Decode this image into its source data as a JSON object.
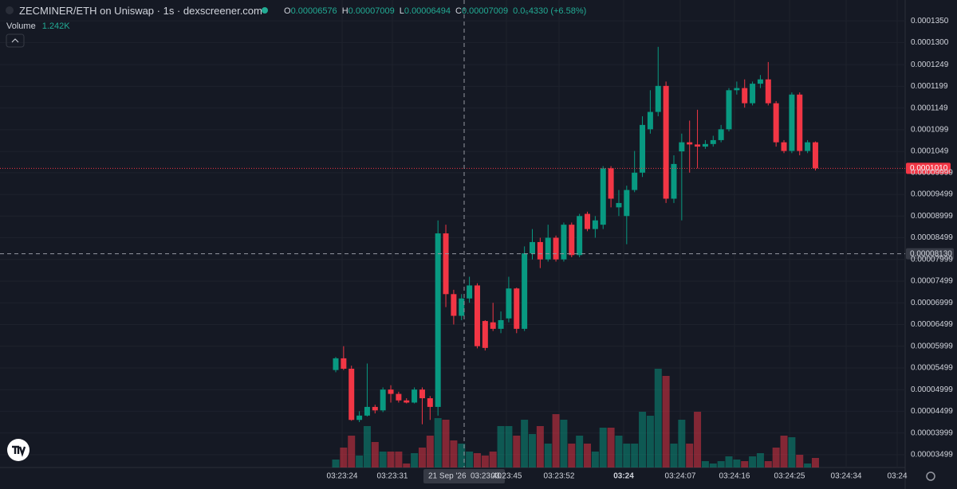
{
  "header": {
    "title": "ZECMINER/ETH on Uniswap · 1s · dexscreener.com",
    "ohlc": [
      {
        "key": "O",
        "value": "0.00006576"
      },
      {
        "key": "H",
        "value": "0.00007009"
      },
      {
        "key": "L",
        "value": "0.00006494"
      },
      {
        "key": "C",
        "value": "0.00007009"
      }
    ],
    "change": "0.0₅4330 (+6.58%)",
    "volume_label": "Volume",
    "volume_value": "1.242K"
  },
  "chart_data": {
    "type": "candlestick",
    "up_color": "#089981",
    "down_color": "#f23645",
    "grid": true,
    "ylim": [
      3.24e-05,
      0.0001398
    ],
    "yticks": [
      {
        "value": 0.000135,
        "label": "0.0001350"
      },
      {
        "value": 0.00013,
        "label": "0.0001300"
      },
      {
        "value": 0.0001249,
        "label": "0.0001249"
      },
      {
        "value": 0.0001199,
        "label": "0.0001199"
      },
      {
        "value": 0.0001149,
        "label": "0.0001149"
      },
      {
        "value": 0.0001099,
        "label": "0.0001099"
      },
      {
        "value": 0.0001049,
        "label": "0.0001049"
      },
      {
        "value": 9.999e-05,
        "label": "0.00009999"
      },
      {
        "value": 9.499e-05,
        "label": "0.00009499"
      },
      {
        "value": 8.999e-05,
        "label": "0.00008999"
      },
      {
        "value": 8.499e-05,
        "label": "0.00008499"
      },
      {
        "value": 7.999e-05,
        "label": "0.00007999"
      },
      {
        "value": 7.499e-05,
        "label": "0.00007499"
      },
      {
        "value": 6.999e-05,
        "label": "0.00006999"
      },
      {
        "value": 6.499e-05,
        "label": "0.00006499"
      },
      {
        "value": 5.999e-05,
        "label": "0.00005999"
      },
      {
        "value": 5.499e-05,
        "label": "0.00005499"
      },
      {
        "value": 4.999e-05,
        "label": "0.00004999"
      },
      {
        "value": 4.499e-05,
        "label": "0.00004499"
      },
      {
        "value": 3.999e-05,
        "label": "0.00003999"
      },
      {
        "value": 3.499e-05,
        "label": "0.00003499"
      }
    ],
    "xticks": [
      "03:23:24",
      "03:23:31",
      "03:23:45",
      "03:23:52",
      "03:24",
      "03:24:07",
      "03:24:16",
      "03:24:25",
      "03:24:34",
      "03:24"
    ],
    "open": [
      5.45e-05,
      5.72e-05,
      5.48e-05,
      4.3e-05,
      4.4e-05,
      4.6e-05,
      4.52e-05,
      5e-05,
      4.9e-05,
      4.75e-05,
      4.7e-05,
      5e-05,
      4.8e-05,
      4.6e-05,
      8.6e-05,
      7.2e-05,
      6.7e-05,
      7.1e-05,
      7.4e-05,
      6.58e-05,
      6.55e-05,
      6.4e-05,
      6.64e-05,
      7.33e-05,
      6.4e-05,
      8.14e-05,
      8.4e-05,
      8e-05,
      8.5e-05,
      8e-05,
      8.8e-05,
      8.1e-05,
      9.05e-05,
      8.7e-05,
      8.8e-05,
      0.000101,
      9.2e-05,
      9e-05,
      9.6e-05,
      0.0001,
      0.00011,
      0.000114,
      0.00012,
      9.4e-05,
      0.0001049,
      0.000107,
      0.0001065,
      0.000106,
      0.0001066,
      0.0001075,
      0.00011,
      0.000119,
      0.0001195,
      0.000116,
      0.0001205,
      0.0001215,
      0.000116,
      0.000107,
      0.000105,
      0.000118,
      0.000105,
      0.000107
    ],
    "high": [
      5.75e-05,
      6e-05,
      5.55e-05,
      4.5e-05,
      5.6e-05,
      4.65e-05,
      5.05e-05,
      5.1e-05,
      4.95e-05,
      4.8e-05,
      5.05e-05,
      5.05e-05,
      4.85e-05,
      8.9e-05,
      8.8e-05,
      7.3e-05,
      7.2e-05,
      7.6e-05,
      7.45e-05,
      6.6e-05,
      7e-05,
      6.8e-05,
      7.6e-05,
      7.35e-05,
      8.3e-05,
      8.7e-05,
      8.5e-05,
      8.8e-05,
      8.55e-05,
      8.85e-05,
      8.85e-05,
      9.05e-05,
      9.1e-05,
      9e-05,
      0.0001015,
      0.0001015,
      9.6e-05,
      9.7e-05,
      0.000105,
      0.000113,
      0.000119,
      0.000129,
      0.000121,
      0.000104,
      0.000109,
      0.000112,
      0.0001145,
      0.0001075,
      0.0001085,
      0.000111,
      0.0001195,
      0.000121,
      0.0001215,
      0.000121,
      0.0001225,
      0.0001255,
      0.0001165,
      0.0001075,
      0.0001185,
      0.0001185,
      0.0001075,
      0.0001072
    ],
    "low": [
      5.4e-05,
      5.45e-05,
      4.28e-05,
      4.25e-05,
      4.38e-05,
      4.45e-05,
      4.48e-05,
      4.7e-05,
      4.7e-05,
      4.68e-05,
      4.68e-05,
      4.2e-05,
      4.3e-05,
      4.4e-05,
      6.9e-05,
      6.5e-05,
      6.6e-05,
      7e-05,
      5.95e-05,
      5.9e-05,
      6.35e-05,
      6.3e-05,
      6.55e-05,
      6.3e-05,
      6.35e-05,
      8e-05,
      7.8e-05,
      7.95e-05,
      7.95e-05,
      7.95e-05,
      8.05e-05,
      8.05e-05,
      8.65e-05,
      8.5e-05,
      8.7e-05,
      9.2e-05,
      9e-05,
      8.35e-05,
      9.55e-05,
      9.9e-05,
      0.000109,
      0.000113,
      9.3e-05,
      9.3e-05,
      8.9e-05,
      0.0001,
      0.000101,
      0.0001055,
      0.000106,
      0.000107,
      0.0001095,
      0.000118,
      0.000115,
      0.0001155,
      0.0001195,
      0.0001155,
      0.000106,
      0.0001045,
      0.0001045,
      0.000104,
      0.0001045,
      0.0001005
    ],
    "close": [
      5.72e-05,
      5.48e-05,
      4.3e-05,
      4.4e-05,
      4.6e-05,
      4.52e-05,
      5e-05,
      4.9e-05,
      4.75e-05,
      4.7e-05,
      5e-05,
      4.8e-05,
      4.6e-05,
      8.6e-05,
      7.2e-05,
      6.7e-05,
      7.1e-05,
      7.4e-05,
      6e-05,
      5.96e-05,
      6.4e-05,
      6.6e-05,
      7.33e-05,
      6.4e-05,
      8.14e-05,
      8.4e-05,
      8e-05,
      8.5e-05,
      8e-05,
      8.8e-05,
      8.1e-05,
      9e-05,
      8.7e-05,
      8.9e-05,
      0.000101,
      9.4e-05,
      9.3e-05,
      9.6e-05,
      0.0001,
      0.000111,
      0.000114,
      0.00012,
      9.4e-05,
      0.000102,
      0.000107,
      0.0001065,
      0.000106,
      0.0001066,
      0.0001075,
      0.00011,
      0.000119,
      0.0001195,
      0.000116,
      0.0001205,
      0.0001215,
      0.000116,
      0.000107,
      0.000105,
      0.000118,
      0.000105,
      0.000107,
      0.000101
    ],
    "volume": [
      10,
      25,
      40,
      15,
      52,
      32,
      20,
      20,
      20,
      5,
      18,
      25,
      40,
      62,
      60,
      34,
      30,
      20,
      18,
      15,
      20,
      52,
      52,
      40,
      60,
      42,
      52,
      30,
      67,
      60,
      30,
      40,
      30,
      20,
      50,
      50,
      40,
      30,
      30,
      70,
      65,
      124,
      115,
      30,
      60,
      30,
      70,
      8,
      5,
      8,
      14,
      10,
      8,
      14,
      18,
      8,
      25,
      40,
      38,
      16,
      5,
      12
    ],
    "last_price": {
      "value": 0.000101,
      "label": "0.0001010"
    },
    "crosshair": {
      "price": {
        "value": 8.13e-05,
        "label": "0.00008130"
      },
      "date": "21 Sep '26",
      "time": "03:23:40"
    }
  }
}
